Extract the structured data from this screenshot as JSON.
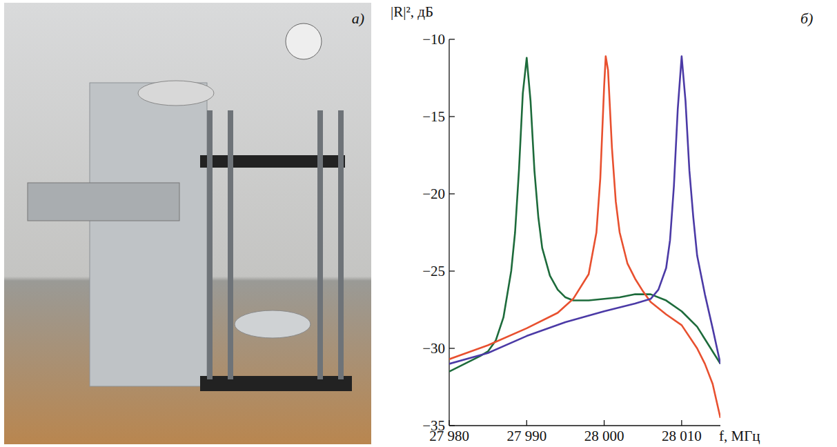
{
  "photo": {
    "label": "а)"
  },
  "chart_data": {
    "type": "line",
    "panel_label": "б)",
    "x_label": "f, МГц",
    "y_label": "|R|², дБ",
    "xlim": [
      27980,
      28015
    ],
    "ylim": [
      -35,
      -10
    ],
    "xticks": [
      {
        "value": 27980,
        "label": "27 980"
      },
      {
        "value": 27990,
        "label": "27 990"
      },
      {
        "value": 28000,
        "label": "28 000"
      },
      {
        "value": 28010,
        "label": "28 010"
      }
    ],
    "yticks": [
      {
        "value": -35,
        "label": "−35"
      },
      {
        "value": -30,
        "label": "−30"
      },
      {
        "value": -25,
        "label": "−25"
      },
      {
        "value": -20,
        "label": "−20"
      },
      {
        "value": -15,
        "label": "−15"
      },
      {
        "value": -10,
        "label": "−10"
      }
    ],
    "grid": false,
    "series": [
      {
        "color": "#1d6b3b",
        "x": [
          27980,
          27982,
          27984,
          27985,
          27986,
          27987,
          27988,
          27988.5,
          27989,
          27989.5,
          27990,
          27990.5,
          27991,
          27991.5,
          27992,
          27993,
          27994,
          27995,
          27996,
          27998,
          28000,
          28002,
          28004,
          28006,
          28008,
          28010,
          28012,
          28014,
          28015
        ],
        "values": [
          -31.5,
          -31,
          -30.5,
          -30.2,
          -29.5,
          -28,
          -25,
          -22.5,
          -18.5,
          -13.5,
          -11.2,
          -14,
          -18.5,
          -21.5,
          -23.5,
          -25.3,
          -26.2,
          -26.7,
          -26.9,
          -26.9,
          -26.8,
          -26.7,
          -26.5,
          -26.5,
          -26.9,
          -27.6,
          -28.6,
          -30.2,
          -31
        ]
      },
      {
        "color": "#e8502f",
        "x": [
          27980,
          27985,
          27990,
          27994,
          27996,
          27998,
          27999,
          27999.5,
          28000,
          28000.2,
          28000.5,
          28001,
          28001.5,
          28002,
          28003,
          28004,
          28005,
          28006,
          28008,
          28010,
          28012,
          28013,
          28014,
          28015
        ],
        "values": [
          -30.7,
          -29.8,
          -28.7,
          -27.7,
          -26.8,
          -25.2,
          -22.5,
          -19,
          -13,
          -11.1,
          -12,
          -17,
          -20.5,
          -22.5,
          -24.5,
          -25.5,
          -26.3,
          -27,
          -27.8,
          -28.5,
          -30,
          -31,
          -32.3,
          -34.5
        ]
      },
      {
        "color": "#4b3aa6",
        "x": [
          27980,
          27985,
          27990,
          27995,
          28000,
          28004,
          28006,
          28007,
          28008,
          28008.5,
          28009,
          28009.5,
          28010,
          28010.5,
          28011,
          28011.5,
          28012,
          28013,
          28014,
          28015
        ],
        "values": [
          -31,
          -30.3,
          -29.2,
          -28.3,
          -27.6,
          -27.1,
          -26.8,
          -26.2,
          -24.8,
          -23,
          -19.5,
          -14.5,
          -11.1,
          -14,
          -18.5,
          -21.5,
          -24,
          -26.5,
          -28.7,
          -31
        ]
      }
    ]
  }
}
